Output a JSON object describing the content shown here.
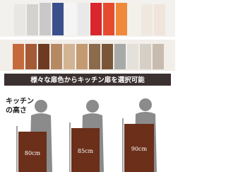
{
  "banner": "様々な扉色からキッチン扉を選択可能",
  "height_label": [
    "キッチン",
    "の高さ"
  ],
  "cabinets": [
    {
      "label": "80cm"
    },
    {
      "label": "85cm"
    },
    {
      "label": "90cm"
    }
  ]
}
